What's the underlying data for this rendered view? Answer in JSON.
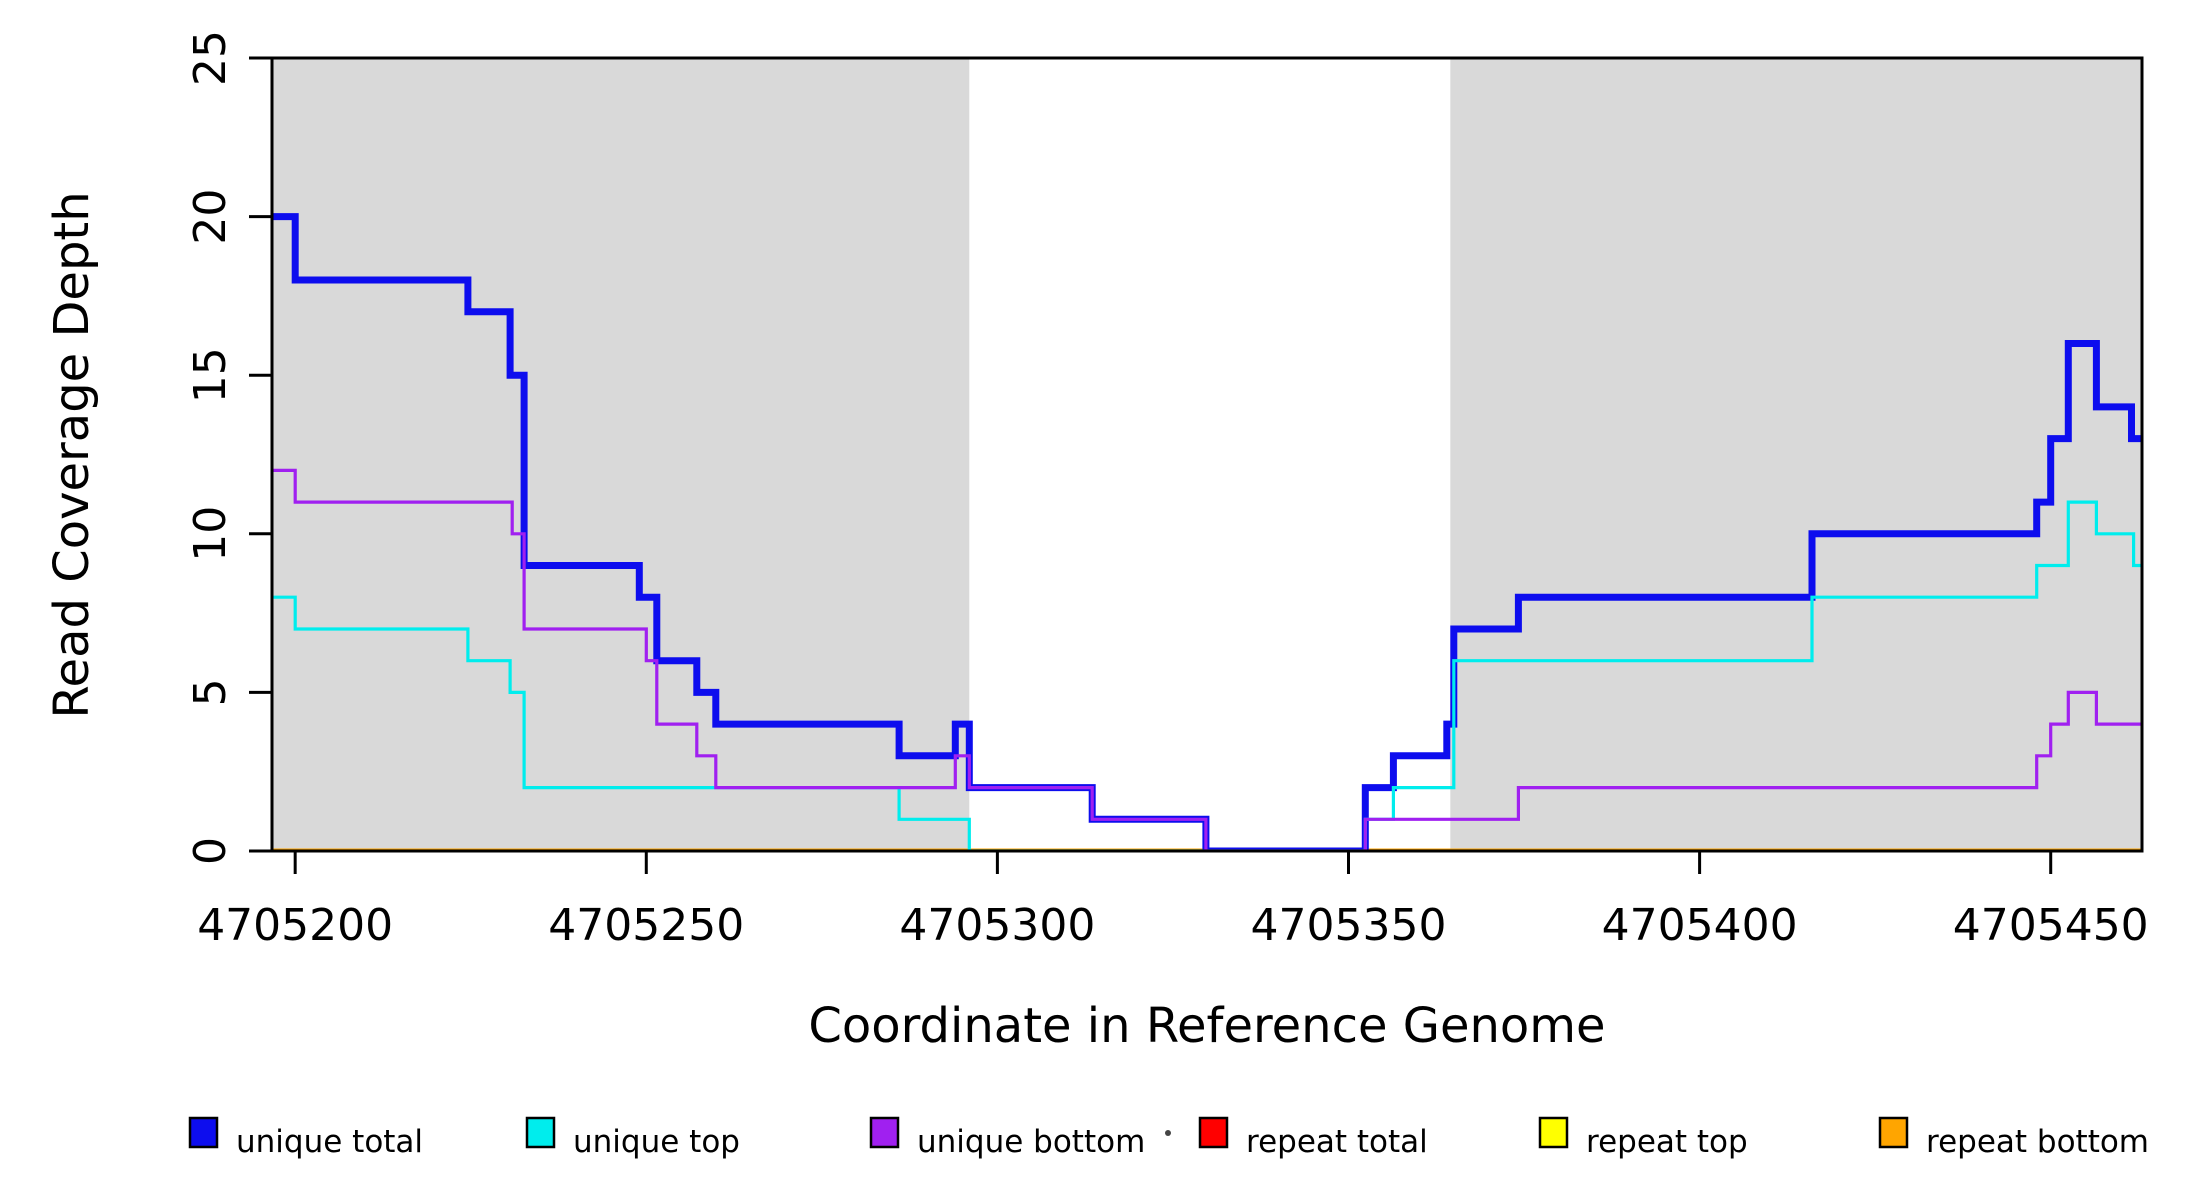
{
  "chart_data": {
    "type": "line",
    "subtype": "step-coverage-plot",
    "title": "",
    "xlabel": "Coordinate in Reference Genome",
    "ylabel": "Read Coverage Depth",
    "xlim": [
      4705196.7,
      4705463.0
    ],
    "ylim": [
      0,
      25
    ],
    "grid": false,
    "legend_position": "bottom",
    "background_color": "#ffffff",
    "shade_color": "#d9d9d9",
    "frame_color": "#000000",
    "x_ticks": [
      4705200,
      4705250,
      4705300,
      4705350,
      4705400,
      4705450
    ],
    "x_tick_labels": [
      "4705200",
      "4705250",
      "4705300",
      "4705350",
      "4705400",
      "4705450"
    ],
    "y_ticks": [
      0,
      5,
      10,
      15,
      20,
      25
    ],
    "y_tick_labels": [
      "0",
      "5",
      "10",
      "15",
      "20",
      "25"
    ],
    "shaded_regions": [
      {
        "from": 4705196.7,
        "to": 4705296.0
      },
      {
        "from": 4705364.5,
        "to": 4705463.0
      }
    ],
    "series": [
      {
        "name": "repeat total",
        "color": "#ff0000",
        "width": 3,
        "steps": [
          [
            4705196.7,
            0
          ]
        ]
      },
      {
        "name": "repeat top",
        "color": "#ffff00",
        "width": 3,
        "steps": [
          [
            4705196.7,
            0
          ]
        ]
      },
      {
        "name": "repeat bottom",
        "color": "#ffa500",
        "width": 5,
        "steps": [
          [
            4705196.7,
            0
          ]
        ]
      },
      {
        "name": "unique total",
        "color": "#0d0dee",
        "width": 7,
        "steps": [
          [
            4705196.7,
            20
          ],
          [
            4705200,
            18
          ],
          [
            4705224.6,
            17
          ],
          [
            4705230.6,
            15
          ],
          [
            4705232.6,
            9
          ],
          [
            4705249,
            8
          ],
          [
            4705251.5,
            6
          ],
          [
            4705257.2,
            5
          ],
          [
            4705259.9,
            4
          ],
          [
            4705286,
            3
          ],
          [
            4705294,
            4
          ],
          [
            4705296,
            2
          ],
          [
            4705313.5,
            1
          ],
          [
            4705329.7,
            0
          ],
          [
            4705352.4,
            2
          ],
          [
            4705356.4,
            3
          ],
          [
            4705364,
            4
          ],
          [
            4705365,
            7
          ],
          [
            4705374.2,
            8
          ],
          [
            4705416,
            10
          ],
          [
            4705448,
            11
          ],
          [
            4705450,
            13
          ],
          [
            4705452.5,
            16
          ],
          [
            4705456.5,
            14
          ],
          [
            4705461.5,
            13
          ]
        ]
      },
      {
        "name": "unique top",
        "color": "#00eded",
        "width": 3.2,
        "steps": [
          [
            4705196.7,
            8
          ],
          [
            4705200,
            7
          ],
          [
            4705224.6,
            6
          ],
          [
            4705230.6,
            5
          ],
          [
            4705232.6,
            2
          ],
          [
            4705286,
            1
          ],
          [
            4705296,
            0
          ],
          [
            4705352.4,
            1
          ],
          [
            4705356.4,
            2
          ],
          [
            4705365,
            6
          ],
          [
            4705416,
            8
          ],
          [
            4705448,
            9
          ],
          [
            4705452.5,
            11
          ],
          [
            4705456.5,
            10
          ],
          [
            4705461.8,
            9
          ]
        ]
      },
      {
        "name": "unique bottom",
        "color": "#a020f0",
        "width": 3.2,
        "steps": [
          [
            4705196.7,
            12
          ],
          [
            4705200,
            11
          ],
          [
            4705230.9,
            10
          ],
          [
            4705232.6,
            7
          ],
          [
            4705250,
            6
          ],
          [
            4705251.5,
            4
          ],
          [
            4705257.2,
            3
          ],
          [
            4705259.9,
            2
          ],
          [
            4705294,
            3
          ],
          [
            4705296,
            2
          ],
          [
            4705313.5,
            1
          ],
          [
            4705329.7,
            0
          ],
          [
            4705352.4,
            1
          ],
          [
            4705374.2,
            2
          ],
          [
            4705448,
            3
          ],
          [
            4705450,
            4
          ],
          [
            4705452.5,
            5
          ],
          [
            4705456.5,
            4
          ]
        ]
      }
    ],
    "legend": [
      {
        "label": "unique total",
        "color": "#0d0dee"
      },
      {
        "label": "unique top",
        "color": "#00eded"
      },
      {
        "label": "unique bottom",
        "color": "#a020f0"
      },
      {
        "label": "repeat total",
        "color": "#ff0000"
      },
      {
        "label": "repeat top",
        "color": "#ffff00"
      },
      {
        "label": "repeat bottom",
        "color": "#ffa500"
      }
    ]
  }
}
